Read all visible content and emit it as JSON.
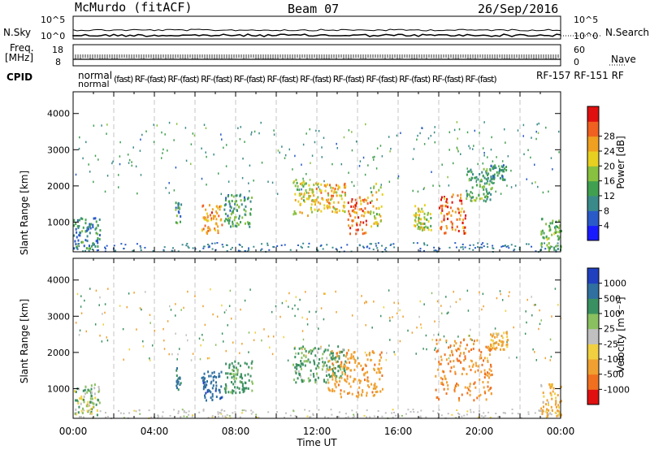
{
  "header": {
    "radar": "McMurdo (fitACF)",
    "beam": "Beam 07",
    "date": "26/Sep/2016"
  },
  "top_panels": {
    "nsky_label": "N.Sky",
    "nsky_ticks": [
      "10^5",
      "10^0"
    ],
    "nsearch_label": "N.Search",
    "nsearch_ticks": [
      "10^5",
      "10^0"
    ],
    "freq_label_line1": "Freq.",
    "freq_label_line2": "[MHz]",
    "freq_ticks": [
      "18",
      "8"
    ],
    "nave_label": "Nave",
    "nave_ticks": [
      "60",
      "0"
    ],
    "cpid_label": "CPID",
    "cpid_row1": "normal",
    "cpid_row2": "normal",
    "cpid_overlap": "(fast) RF-(fast) RF-(fast) RF-(fast) RF-(fast) RF-(fast) RF-(fast) RF-(fast) RF-(fast) RF-(fast) RF-(fast) RF-(fast)",
    "cpid_tail": "RF-157  RF-151  RF"
  },
  "axes": {
    "ylabel": "Slant Range [km]",
    "y_ticks": [
      "1000",
      "2000",
      "3000",
      "4000"
    ],
    "x_ticks": [
      "00:00",
      "04:00",
      "08:00",
      "12:00",
      "16:00",
      "20:00",
      "00:00"
    ],
    "xlabel": "Time UT"
  },
  "power_colorbar": {
    "label": "Power [dB]",
    "ticks": [
      "4",
      "8",
      "12",
      "16",
      "20",
      "24",
      "28"
    ],
    "colors": [
      "#1a1aff",
      "#2a5ac8",
      "#3a8a8a",
      "#40a050",
      "#88c040",
      "#e8d020",
      "#f0a020",
      "#f06020",
      "#e01010"
    ]
  },
  "velocity_colorbar": {
    "label": "Velocity [m s⁻¹]",
    "ticks": [
      "1000",
      "500",
      "100",
      "25",
      "-25",
      "-100",
      "-500",
      "-1000"
    ],
    "colors": [
      "#2040c0",
      "#3070a0",
      "#3a9060",
      "#8ac060",
      "#c0c0c0",
      "#f0d040",
      "#f0a030",
      "#f07020",
      "#e01010"
    ]
  },
  "chart_data": [
    {
      "type": "heatmap",
      "title": "Power",
      "xlabel": "Time UT",
      "ylabel": "Slant Range [km]",
      "xlim": [
        0,
        24
      ],
      "ylim": [
        180,
        4600
      ],
      "value_label": "Power [dB]",
      "vlim": [
        0,
        30
      ],
      "blobs": [
        {
          "t0": 0.0,
          "t1": 1.3,
          "r0": 300,
          "r1": 1150,
          "v": 9
        },
        {
          "t0": 5.0,
          "t1": 5.3,
          "r0": 1000,
          "r1": 1600,
          "v": 10
        },
        {
          "t0": 6.3,
          "t1": 7.3,
          "r0": 700,
          "r1": 1500,
          "v": 22
        },
        {
          "t0": 7.4,
          "t1": 8.8,
          "r0": 900,
          "r1": 1800,
          "v": 11
        },
        {
          "t0": 10.8,
          "t1": 11.6,
          "r0": 1200,
          "r1": 2200,
          "v": 17
        },
        {
          "t0": 11.6,
          "t1": 13.4,
          "r0": 1300,
          "r1": 2100,
          "v": 20
        },
        {
          "t0": 13.5,
          "t1": 14.6,
          "r0": 700,
          "r1": 1800,
          "v": 24
        },
        {
          "t0": 14.6,
          "t1": 15.2,
          "r0": 900,
          "r1": 2100,
          "v": 18
        },
        {
          "t0": 16.7,
          "t1": 17.6,
          "r0": 800,
          "r1": 1500,
          "v": 17
        },
        {
          "t0": 18.0,
          "t1": 19.3,
          "r0": 700,
          "r1": 1800,
          "v": 24
        },
        {
          "t0": 19.3,
          "t1": 20.6,
          "r0": 1600,
          "r1": 2500,
          "v": 12
        },
        {
          "t0": 20.5,
          "t1": 21.3,
          "r0": 2200,
          "r1": 2600,
          "v": 9
        },
        {
          "t0": 23.0,
          "t1": 24.0,
          "r0": 250,
          "r1": 1150,
          "v": 12
        }
      ]
    },
    {
      "type": "heatmap",
      "title": "Velocity",
      "xlabel": "Time UT",
      "ylabel": "Slant Range [km]",
      "xlim": [
        0,
        24
      ],
      "ylim": [
        180,
        4600
      ],
      "value_label": "Velocity [m s⁻¹]",
      "vlim": [
        -1000,
        1000
      ],
      "blobs": [
        {
          "t0": 0.0,
          "t1": 1.3,
          "r0": 300,
          "r1": 1150,
          "v": 30
        },
        {
          "t0": 5.0,
          "t1": 5.3,
          "r0": 1000,
          "r1": 1600,
          "v": 500
        },
        {
          "t0": 6.3,
          "t1": 7.3,
          "r0": 700,
          "r1": 1500,
          "v": 900
        },
        {
          "t0": 7.4,
          "t1": 8.8,
          "r0": 900,
          "r1": 1800,
          "v": 200
        },
        {
          "t0": 10.8,
          "t1": 13.4,
          "r0": 1200,
          "r1": 2200,
          "v": 150
        },
        {
          "t0": 12.5,
          "t1": 15.2,
          "r0": 800,
          "r1": 2100,
          "v": -400
        },
        {
          "t0": 17.8,
          "t1": 20.6,
          "r0": 700,
          "r1": 2400,
          "v": -500
        },
        {
          "t0": 20.5,
          "t1": 21.4,
          "r0": 2100,
          "r1": 2600,
          "v": -150
        },
        {
          "t0": 23.0,
          "t1": 24.0,
          "r0": 250,
          "r1": 1150,
          "v": -150
        }
      ]
    }
  ]
}
